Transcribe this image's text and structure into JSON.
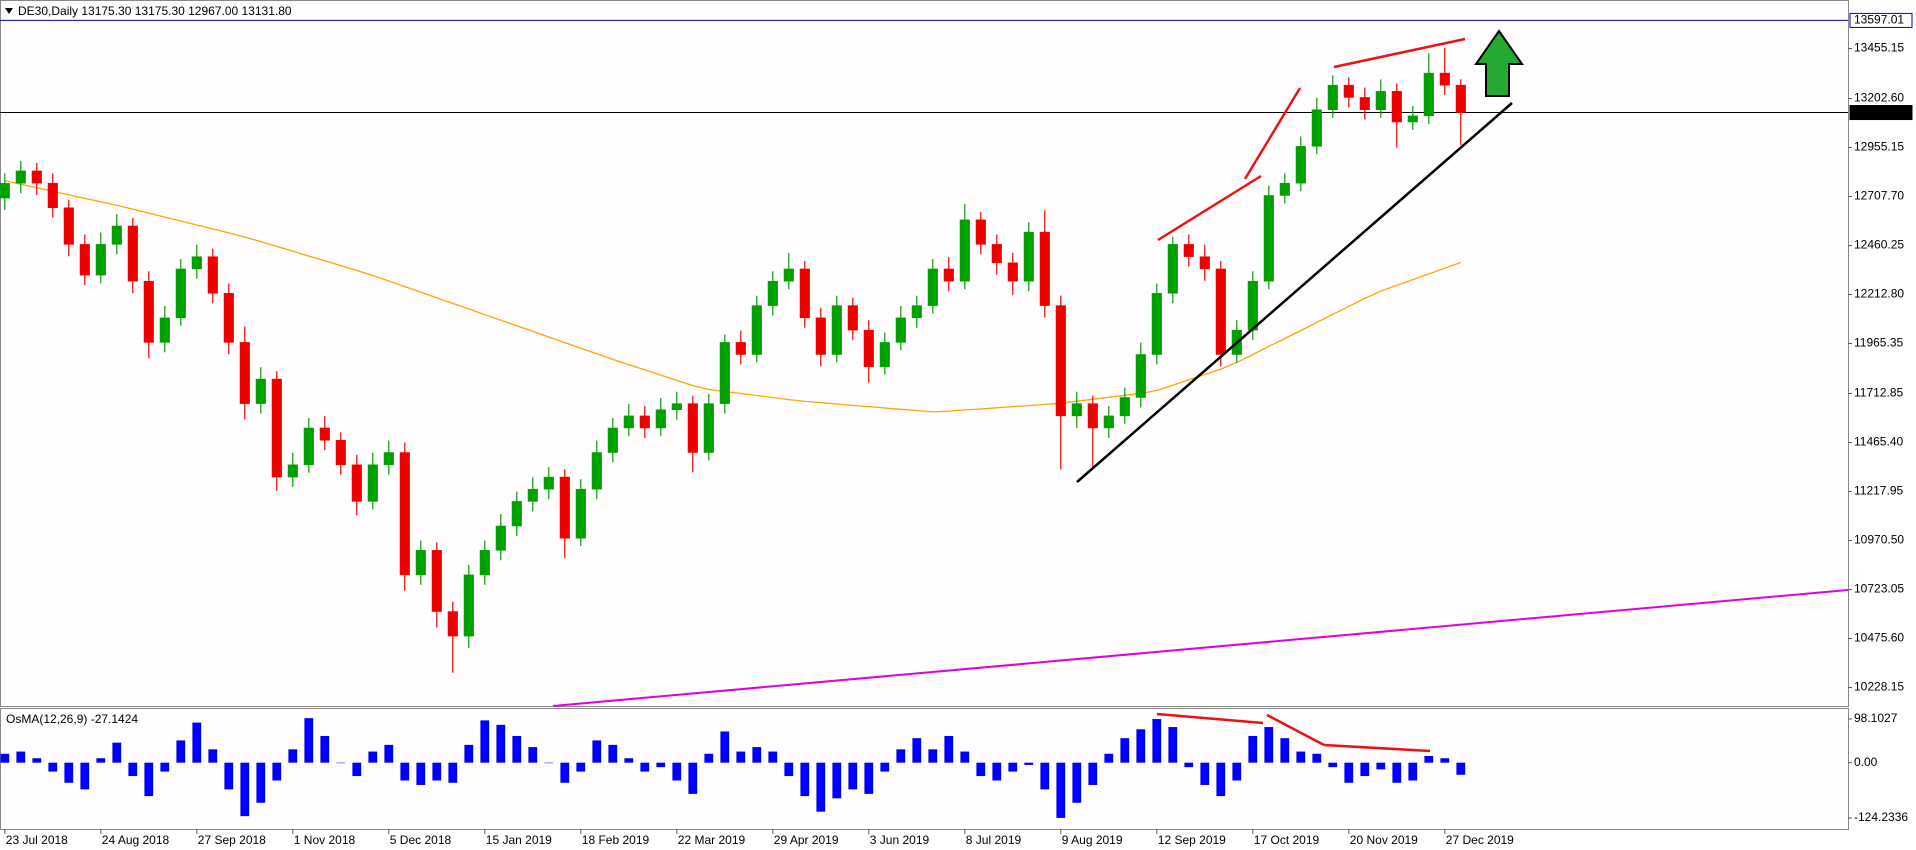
{
  "chart_data": [
    {
      "type": "candlestick",
      "title": "DE30,Daily  13175.30 13175.30 12967.00 13131.80",
      "color_up": "#00a000",
      "color_down": "#ee0000",
      "xlim": [
        -0.3,
        115.2
      ],
      "ylim": [
        10135,
        13690
      ],
      "yticks": [
        13455.15,
        {
          "value": 13202.6,
          "label": "13202.60"
        },
        12955.15,
        {
          "value": 12707.7,
          "label": "12707.70"
        },
        12460.25,
        {
          "value": 12212.8,
          "label": "12212.80"
        },
        11965.35,
        11712.85,
        {
          "value": 11465.4,
          "label": "11465.40"
        },
        11217.95,
        {
          "value": 10970.5,
          "label": "10970.50"
        },
        10723.05,
        {
          "value": 10475.6,
          "label": "10475.60"
        },
        10228.15
      ],
      "hlines": [
        {
          "value": 13597.01,
          "color": "#0000cd"
        },
        {
          "value": 13131.8,
          "label": "13131.80",
          "color": "#000000"
        }
      ],
      "open": [
        12700,
        12775,
        12837,
        12775,
        12651,
        12466,
        12311,
        12466,
        12559,
        12280,
        11971,
        12095,
        12342,
        12404,
        12219,
        11971,
        11662,
        11786,
        11291,
        11353,
        11539,
        11477,
        11353,
        11168,
        11353,
        11415,
        10797,
        10921,
        10612,
        10488,
        10797,
        10921,
        11044,
        11168,
        11230,
        11291,
        10982,
        11230,
        11415,
        11539,
        11600,
        11539,
        11631,
        11662,
        11415,
        11662,
        11971,
        11910,
        12157,
        12280,
        12342,
        12095,
        11910,
        12157,
        12033,
        11848,
        11971,
        12095,
        12157,
        12342,
        12280,
        12590,
        12466,
        12373,
        12280,
        12528,
        12157,
        11600,
        11662,
        11539,
        11600,
        11693,
        11910,
        12219,
        12466,
        12404,
        12342,
        11910,
        12033,
        12280,
        12713,
        12775,
        12961,
        13146,
        13270,
        13208,
        13146,
        13239,
        13084,
        13115,
        13331,
        13270
      ],
      "high": [
        12825,
        12887,
        12877,
        12825,
        12691,
        12516,
        12526,
        12619,
        12599,
        12330,
        12155,
        12392,
        12464,
        12444,
        12269,
        12051,
        11846,
        11826,
        11413,
        11589,
        11599,
        11517,
        11403,
        11413,
        11475,
        11465,
        10971,
        10961,
        10662,
        10847,
        10971,
        11104,
        11218,
        11290,
        11341,
        11331,
        11280,
        11475,
        11589,
        11660,
        11650,
        11691,
        11722,
        11702,
        11712,
        12011,
        12031,
        12207,
        12330,
        12422,
        12382,
        12145,
        12207,
        12197,
        12083,
        12021,
        12155,
        12207,
        12392,
        12402,
        12670,
        12630,
        12516,
        12423,
        12578,
        12638,
        12207,
        11722,
        11702,
        11650,
        11743,
        11970,
        12269,
        12506,
        12516,
        12464,
        12382,
        12083,
        12330,
        12763,
        12825,
        13011,
        13206,
        13320,
        13310,
        13258,
        13299,
        13279,
        13165,
        13431,
        13461,
        13300
      ],
      "low": [
        12640,
        12725,
        12715,
        12601,
        12406,
        12261,
        12271,
        12416,
        12220,
        11891,
        11921,
        12055,
        12292,
        12169,
        11911,
        11582,
        11612,
        11221,
        11241,
        11313,
        11427,
        11303,
        11098,
        11128,
        11303,
        10717,
        10747,
        10532,
        10303,
        10428,
        10747,
        10871,
        10994,
        11118,
        11180,
        10882,
        10942,
        11180,
        11365,
        11499,
        11489,
        11499,
        11581,
        11315,
        11375,
        11612,
        11860,
        11870,
        12107,
        12240,
        12045,
        11850,
        11870,
        11983,
        11768,
        11808,
        11931,
        12045,
        12117,
        12230,
        12240,
        12416,
        12313,
        12210,
        12230,
        12097,
        11330,
        11540,
        11339,
        11489,
        11560,
        11643,
        11860,
        12169,
        12354,
        12282,
        11850,
        11870,
        11983,
        12240,
        12673,
        12735,
        12921,
        13106,
        13158,
        13096,
        13106,
        12954,
        13044,
        13075,
        13220,
        12967
      ],
      "close": [
        12775,
        12837,
        12775,
        12651,
        12466,
        12311,
        12466,
        12559,
        12280,
        11971,
        12095,
        12342,
        12404,
        12219,
        11971,
        11662,
        11786,
        11291,
        11353,
        11539,
        11477,
        11353,
        11168,
        11353,
        11415,
        10797,
        10921,
        10612,
        10488,
        10797,
        10921,
        11044,
        11168,
        11230,
        11291,
        10982,
        11230,
        11415,
        11539,
        11600,
        11539,
        11631,
        11662,
        11415,
        11662,
        11971,
        11910,
        12157,
        12280,
        12342,
        12095,
        11910,
        12157,
        12033,
        11848,
        11971,
        12095,
        12157,
        12342,
        12280,
        12590,
        12466,
        12373,
        12280,
        12528,
        12157,
        11600,
        11662,
        11539,
        11600,
        11693,
        11910,
        12219,
        12466,
        12404,
        12342,
        11910,
        12033,
        12280,
        12713,
        12775,
        12961,
        13146,
        13270,
        13208,
        13146,
        13239,
        13084,
        13115,
        13331,
        13270,
        13131.8
      ],
      "overlay_line": {
        "color": "#ffa500",
        "values": [
          12788,
          12770,
          12752,
          12734,
          12716,
          12698,
          12681,
          12663,
          12644,
          12624,
          12604,
          12584,
          12564,
          12544,
          12524,
          12503,
          12480,
          12456,
          12432,
          12407,
          12383,
          12359,
          12334,
          12309,
          12281,
          12253,
          12225,
          12196,
          12168,
          12140,
          12111,
          12083,
          12055,
          12027,
          11998,
          11970,
          11942,
          11914,
          11885,
          11859,
          11832,
          11806,
          11779,
          11753,
          11733,
          11723,
          11713,
          11703,
          11693,
          11682,
          11673,
          11667,
          11660,
          11653,
          11647,
          11640,
          11633,
          11627,
          11620,
          11624,
          11630,
          11635,
          11641,
          11647,
          11652,
          11658,
          11664,
          11674,
          11684,
          11694,
          11704,
          11714,
          11728,
          11755,
          11782,
          11809,
          11836,
          11870,
          11910,
          11951,
          11991,
          12031,
          12072,
          12113,
          12153,
          12194,
          12230,
          12259,
          12288,
          12317,
          12346,
          12375
        ]
      }
    },
    {
      "type": "bar",
      "title": "OsMA(12,26,9) -27.1424",
      "color": "#0000ff",
      "xlim": [
        -0.3,
        115.2
      ],
      "ylim": [
        -148.9,
        122.8
      ],
      "yticks": [
        98.1027,
        {
          "value": 0,
          "label": "0.00"
        },
        -124.2336
      ],
      "xticks": [
        {
          "value": 0,
          "label": "23 Jul 2018"
        },
        {
          "value": 6,
          "label": "24 Aug 2018"
        },
        {
          "value": 12,
          "label": "27 Sep 2018"
        },
        {
          "value": 18,
          "label": "1 Nov 2018"
        },
        {
          "value": 24,
          "label": "5 Dec 2018"
        },
        {
          "value": 30,
          "label": "15 Jan 2019"
        },
        {
          "value": 36,
          "label": "18 Feb 2019"
        },
        {
          "value": 42,
          "label": "22 Mar 2019"
        },
        {
          "value": 48,
          "label": "29 Apr 2019"
        },
        {
          "value": 54,
          "label": "3 Jun 2019"
        },
        {
          "value": 60,
          "label": "8 Jul 2019"
        },
        {
          "value": 66,
          "label": "9 Aug 2019"
        },
        {
          "value": 72,
          "label": "12 Sep 2019"
        },
        {
          "value": 78,
          "label": "17 Oct 2019"
        },
        {
          "value": 84,
          "label": "20 Nov 2019"
        },
        {
          "value": 90,
          "label": "27 Dec 2019"
        }
      ],
      "values": [
        20,
        25,
        10,
        -20,
        -45,
        -60,
        10,
        45,
        -30,
        -75,
        -20,
        50,
        90,
        30,
        -60,
        -120,
        -90,
        -40,
        30,
        100,
        60,
        0,
        -30,
        25,
        40,
        -40,
        -50,
        -40,
        -45,
        40,
        95,
        85,
        60,
        35,
        0,
        -45,
        -20,
        50,
        40,
        10,
        -20,
        -10,
        -40,
        -70,
        20,
        70,
        25,
        35,
        25,
        -30,
        -75,
        -110,
        -80,
        -60,
        -70,
        -20,
        30,
        55,
        30,
        60,
        25,
        -30,
        -40,
        -20,
        -5,
        -60,
        -124,
        -90,
        -50,
        20,
        55,
        75,
        98,
        80,
        -10,
        -50,
        -75,
        -40,
        60,
        80,
        55,
        25,
        20,
        -10,
        -45,
        -30,
        -15,
        -45,
        -40,
        15,
        10,
        -27.1424
      ]
    }
  ]
}
